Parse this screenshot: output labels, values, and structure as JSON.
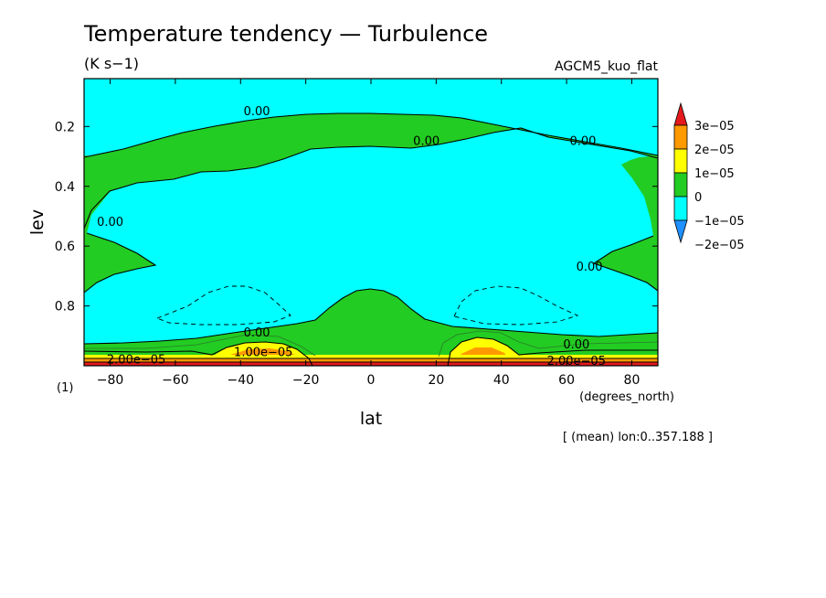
{
  "chart_data": {
    "type": "contour",
    "title": "Temperature tendency — Turbulence",
    "units": "(K s−1)",
    "model": "AGCM5_kuo_flat",
    "xlabel": "lat",
    "ylabel": "lev",
    "x_units": "(degrees_north)",
    "y_units": "(1)",
    "note": "[ (mean) lon:0..357.188 ]",
    "xlim": [
      -88,
      88
    ],
    "ylim": [
      1.0,
      0.04
    ],
    "x_ticks": [
      -80,
      -60,
      -40,
      -20,
      0,
      20,
      40,
      60,
      80
    ],
    "x_tick_labels": [
      "−80",
      "−60",
      "−40",
      "−20",
      "0",
      "20",
      "40",
      "60",
      "80"
    ],
    "y_ticks": [
      0.2,
      0.4,
      0.6,
      0.8
    ],
    "y_tick_labels": [
      "0.2",
      "0.4",
      "0.6",
      "0.8"
    ],
    "colorbar": {
      "labels": [
        "3e−05",
        "2e−05",
        "1e−05",
        "0",
        "−1e−05",
        "−2e−05"
      ],
      "colors": [
        "#e41a1c",
        "#ff9900",
        "#ffff00",
        "#22cc22",
        "#00ffff",
        "#1e90ff"
      ]
    },
    "contour_labels": [
      {
        "text": "0.00",
        "lat": -35,
        "lev": 0.15
      },
      {
        "text": "0.00",
        "lat": 17,
        "lev": 0.25
      },
      {
        "text": "0.00",
        "lat": 65,
        "lev": 0.25
      },
      {
        "text": "0.00",
        "lat": -80,
        "lev": 0.52
      },
      {
        "text": "0.00",
        "lat": 67,
        "lev": 0.67
      },
      {
        "text": "0.00",
        "lat": -35,
        "lev": 0.89
      },
      {
        "text": "0.00",
        "lat": 63,
        "lev": 0.93
      },
      {
        "text": "1.00e−05",
        "lat": -33,
        "lev": 0.955
      },
      {
        "text": "2.00e−05",
        "lat": -72,
        "lev": 0.98
      },
      {
        "text": "2.00e−05",
        "lat": 63,
        "lev": 0.985
      }
    ]
  }
}
